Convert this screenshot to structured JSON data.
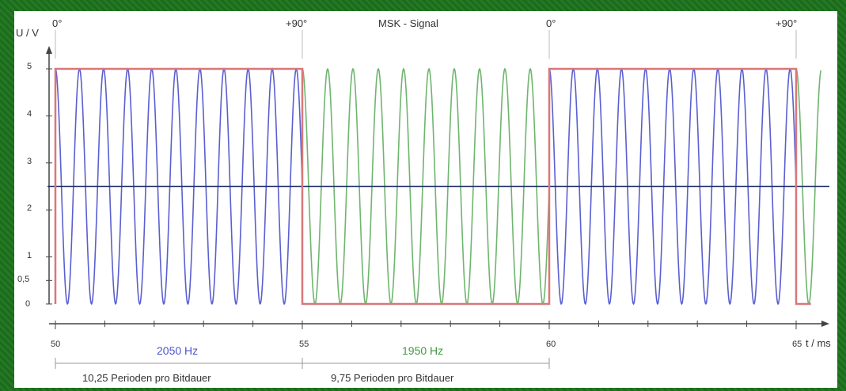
{
  "chart_data": {
    "type": "line",
    "title": "MSK - Signal",
    "ylabel": "U / V",
    "xlabel": "t / ms",
    "xlim": [
      50,
      65
    ],
    "ylim": [
      0,
      5
    ],
    "y_ticks": [
      "0",
      "0,5",
      "1",
      "2",
      "3",
      "4",
      "5"
    ],
    "x_ticks": [
      "50",
      "55",
      "60",
      "65"
    ],
    "phase_labels": [
      "0°",
      "+90°",
      "0°",
      "+90°"
    ],
    "phase_times": [
      50,
      55,
      60,
      65
    ],
    "midline": 2.5,
    "series": [
      {
        "color": "#d9777a",
        "kind": "bit-signal",
        "segments": [
          {
            "t0": 50,
            "t1": 55,
            "level": 5
          },
          {
            "t0": 55,
            "t1": 60,
            "level": 0
          },
          {
            "t0": 60,
            "t1": 65,
            "level": 5
          },
          {
            "t0": 65,
            "t1": 65.3,
            "level": 0
          }
        ]
      },
      {
        "color": "#5a5fd0",
        "kind": "carrier",
        "frequency_hz": 2050,
        "intervals": [
          [
            50,
            55
          ],
          [
            60,
            65
          ]
        ]
      },
      {
        "color": "#6fb56f",
        "kind": "carrier",
        "frequency_hz": 1950,
        "intervals": [
          [
            55,
            60
          ],
          [
            65,
            65.5
          ]
        ]
      }
    ],
    "annotations": {
      "freq_blue": "2050 Hz",
      "freq_green": "1950 Hz",
      "periods_blue": "10,25 Perioden pro Bitdauer",
      "periods_green": "9,75 Perioden pro Bitdauer"
    }
  }
}
